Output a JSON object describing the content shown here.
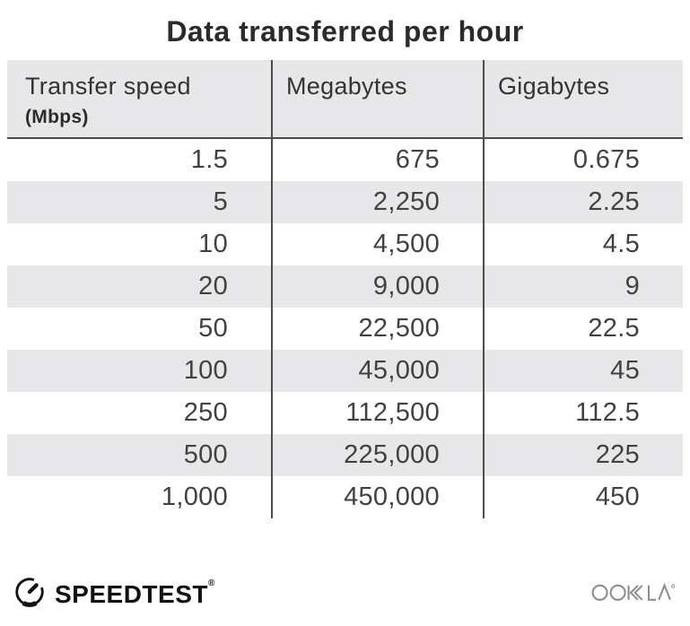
{
  "title": "Data transferred per hour",
  "table": {
    "columns": [
      {
        "label": "Transfer speed",
        "sublabel": "(Mbps)"
      },
      {
        "label": "Megabytes"
      },
      {
        "label": "Gigabytes"
      }
    ],
    "rows": [
      [
        "1.5",
        "675",
        "0.675"
      ],
      [
        "5",
        "2,250",
        "2.25"
      ],
      [
        "10",
        "4,500",
        "4.5"
      ],
      [
        "20",
        "9,000",
        "9"
      ],
      [
        "50",
        "22,500",
        "22.5"
      ],
      [
        "100",
        "45,000",
        "45"
      ],
      [
        "250",
        "112,500",
        "112.5"
      ],
      [
        "500",
        "225,000",
        "225"
      ],
      [
        "1,000",
        "450,000",
        "450"
      ]
    ]
  },
  "chart_data": {
    "type": "table",
    "title": "Data transferred per hour",
    "columns": [
      "Transfer speed (Mbps)",
      "Megabytes",
      "Gigabytes"
    ],
    "rows": [
      [
        1.5,
        675,
        0.675
      ],
      [
        5,
        2250,
        2.25
      ],
      [
        10,
        4500,
        4.5
      ],
      [
        20,
        9000,
        9
      ],
      [
        50,
        22500,
        22.5
      ],
      [
        100,
        45000,
        45
      ],
      [
        250,
        112500,
        112.5
      ],
      [
        500,
        225000,
        225
      ],
      [
        1000,
        450000,
        450
      ]
    ]
  },
  "footer": {
    "speedtest_label": "SPEEDTEST",
    "speedtest_trademark": "®",
    "ookla_label": "OOKLA",
    "icons": {
      "gauge": "speedtest-gauge-icon",
      "ookla": "ookla-logo"
    }
  },
  "colors": {
    "page-bg": "#ffffff",
    "title-text": "#2b2b2b",
    "header-bg": "#e7e7ea",
    "row-alt-bg": "#e7e7ea",
    "divider": "#4d4d4d",
    "header-text": "#333333",
    "body-text": "#414141",
    "speedtest-black": "#111111",
    "ookla-gray": "#8d8d8d"
  }
}
